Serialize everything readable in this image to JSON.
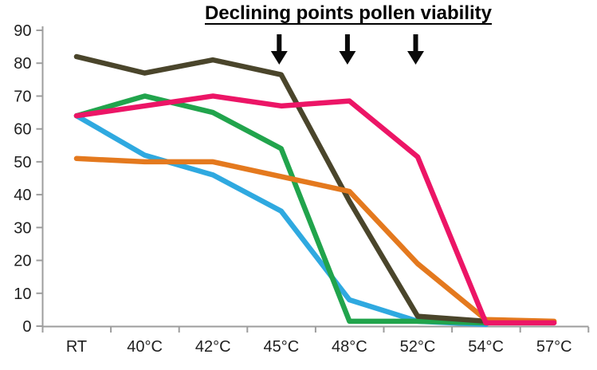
{
  "title": "Declining points pollen viability",
  "chart_data": {
    "type": "line",
    "title": "Declining points pollen viability",
    "categories": [
      "RT",
      "40°C",
      "42°C",
      "45°C",
      "48°C",
      "52°C",
      "54°C",
      "57°C"
    ],
    "series": [
      {
        "name": "blue",
        "color": "#2fa9e0",
        "values": [
          64,
          52,
          46,
          35,
          8,
          1.5,
          0.5,
          null
        ]
      },
      {
        "name": "green",
        "color": "#21a44c",
        "values": [
          64,
          70,
          65,
          54,
          1.5,
          1.5,
          1,
          null
        ]
      },
      {
        "name": "olive",
        "color": "#4a452b",
        "values": [
          82,
          77,
          81,
          76.5,
          38,
          3,
          1.5,
          null
        ]
      },
      {
        "name": "orange",
        "color": "#e4791e",
        "values": [
          51,
          50,
          50,
          45.5,
          41,
          19,
          2,
          1.5
        ]
      },
      {
        "name": "pink",
        "color": "#ec1566",
        "values": [
          64,
          67,
          70,
          67,
          68.5,
          51.5,
          1,
          1
        ]
      }
    ],
    "ylim": [
      0,
      90
    ],
    "yticks": [
      0,
      10,
      20,
      30,
      40,
      50,
      60,
      70,
      80,
      90
    ],
    "grid": false,
    "legend": "none",
    "annotation": {
      "text": "Declining points pollen viability",
      "underline": true,
      "arrow_categories": [
        "45°C",
        "48°C",
        "52°C"
      ],
      "arrow_category_indices": [
        3,
        4,
        5
      ]
    }
  },
  "colors": {
    "axis": "#9d9d9d",
    "tick_text": "#1f1f1f",
    "arrow": "#0a0a0a",
    "background": "#ffffff"
  }
}
